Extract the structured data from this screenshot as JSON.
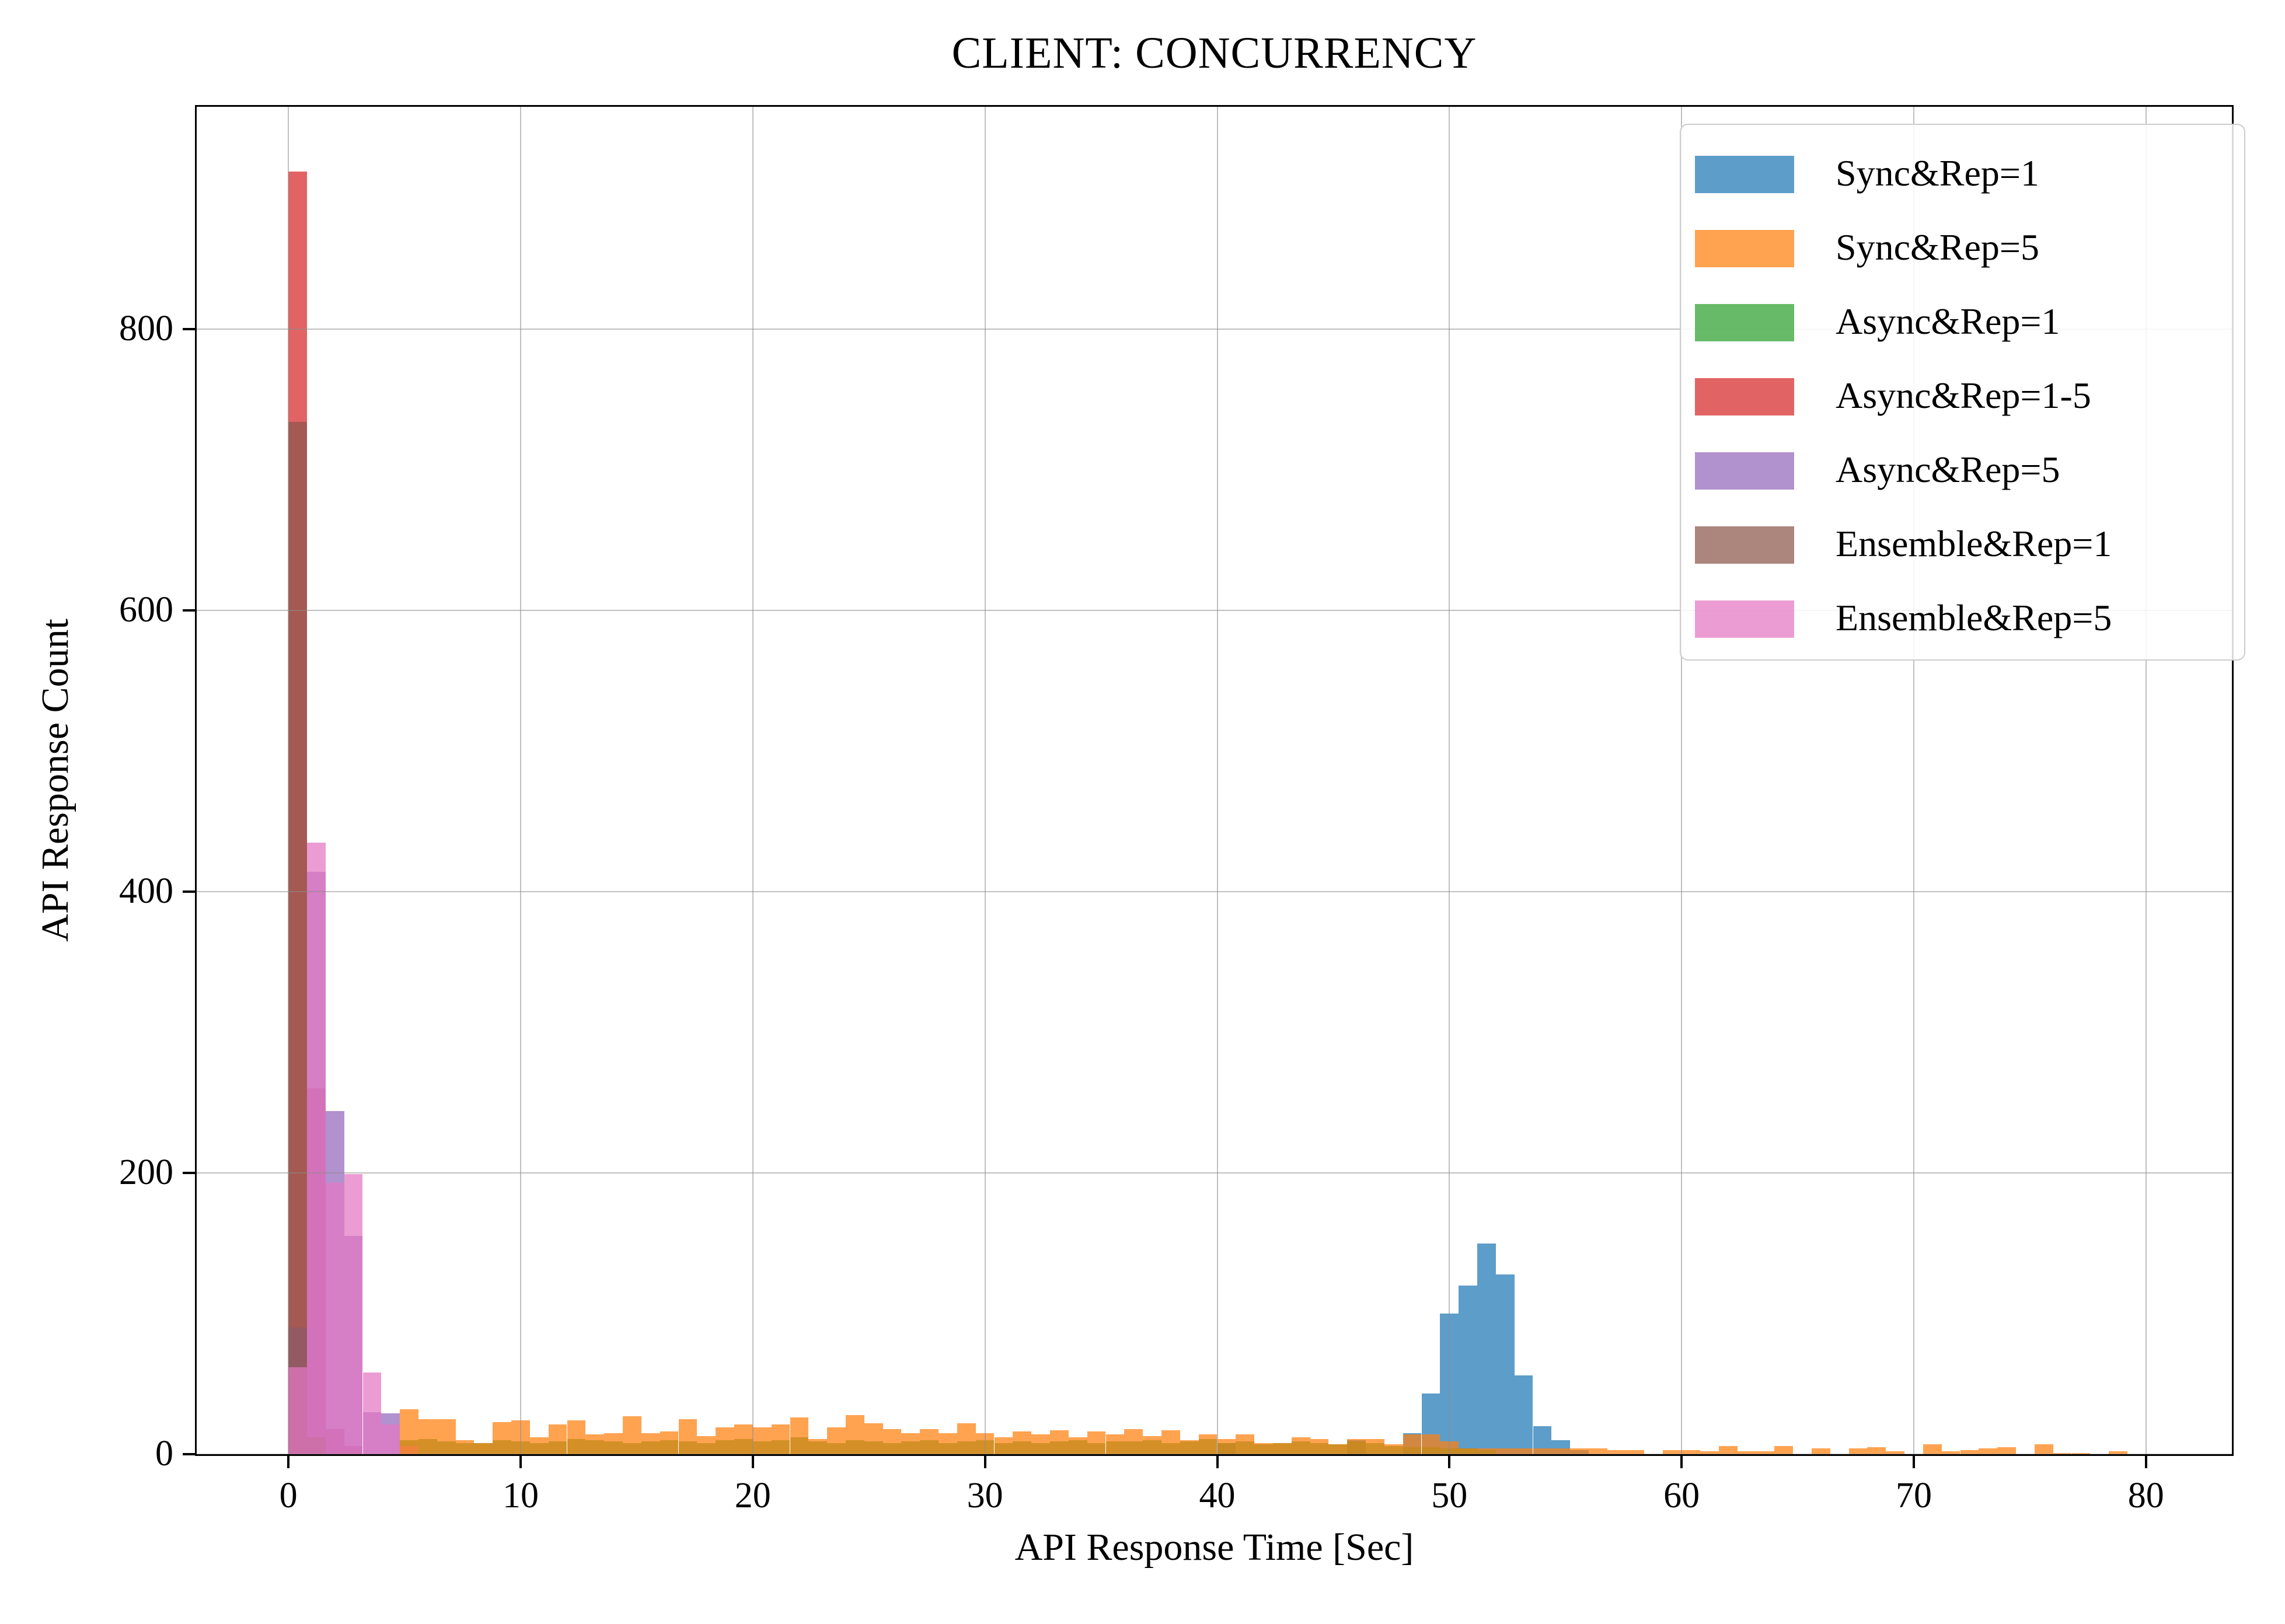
{
  "figure": {
    "background": "#ffffff"
  },
  "chart_data": {
    "type": "bar",
    "subtype": "overlapping-histogram",
    "title": "CLIENT: CONCURRENCY",
    "xlabel": "API Response Time [Sec]",
    "ylabel": "API Response Count",
    "xlim": [
      -3.95,
      83.7
    ],
    "ylim": [
      0,
      958
    ],
    "xticks": [
      0,
      10,
      20,
      30,
      40,
      50,
      60,
      70,
      80
    ],
    "yticks": [
      0,
      200,
      400,
      600,
      800
    ],
    "grid": true,
    "grid_above_bars": true,
    "legend_position": "upper right",
    "bar_alpha": 0.72,
    "bin_width": 0.8,
    "draw_order": [
      "Sync&Rep=1",
      "Async&Rep=1",
      "Async&Rep=1-5",
      "Async&Rep=5",
      "Ensemble&Rep=1",
      "Ensemble&Rep=5",
      "Sync&Rep=5"
    ],
    "series": [
      {
        "name": "Sync&Rep=1",
        "color": "#1f77b4",
        "bin_start": 40.0,
        "counts": [
          8,
          0,
          0,
          0,
          0,
          0,
          0,
          10,
          0,
          0,
          15,
          43,
          100,
          120,
          150,
          128,
          56,
          20,
          10,
          3
        ]
      },
      {
        "name": "Sync&Rep=5",
        "color": "#ff7f0e",
        "bin_start": 4.8,
        "counts": [
          32,
          25,
          25,
          10,
          8,
          23,
          24,
          12,
          21,
          24,
          14,
          15,
          27,
          15,
          16,
          25,
          13,
          19,
          21,
          19,
          21,
          26,
          11,
          19,
          28,
          22,
          18,
          15,
          18,
          15,
          22,
          15,
          12,
          16,
          14,
          17,
          12,
          16,
          14,
          18,
          13,
          17,
          10,
          14,
          11,
          14,
          8,
          8,
          12,
          11,
          7,
          11,
          11,
          7,
          14,
          14,
          9,
          4,
          4,
          4,
          4,
          4,
          4,
          4,
          4,
          3,
          3,
          0,
          3,
          3,
          2,
          6,
          2,
          2,
          6,
          0,
          4,
          0,
          4,
          5,
          2,
          0,
          7,
          2,
          3,
          4,
          5,
          0,
          7,
          1,
          1,
          0,
          2
        ]
      },
      {
        "name": "Async&Rep=1",
        "color": "#2ca02c",
        "bin_start": 4.8,
        "counts": [
          10,
          11,
          9,
          8,
          8,
          10,
          9,
          8,
          9,
          11,
          10,
          9,
          8,
          9,
          10,
          9,
          8,
          10,
          11,
          9,
          10,
          12,
          9,
          8,
          10,
          9,
          8,
          9,
          10,
          8,
          9,
          10,
          8,
          9,
          8,
          9,
          10,
          8,
          9,
          9,
          10,
          8,
          9,
          11,
          8,
          9,
          7,
          8,
          9,
          8,
          7,
          9,
          8,
          6,
          5,
          5,
          4,
          4,
          3
        ]
      },
      {
        "name": "Async&Rep=1-5",
        "color": "#d62728",
        "bin_start": 0.0,
        "counts": [
          912,
          260,
          18,
          6,
          0,
          0
        ]
      },
      {
        "name": "Async&Rep=5",
        "color": "#9467bd",
        "bin_start": 0.0,
        "counts": [
          90,
          414,
          244,
          155,
          30,
          29
        ]
      },
      {
        "name": "Ensemble&Rep=1",
        "color": "#8c564b",
        "bin_start": 0.0,
        "counts": [
          734,
          12,
          0,
          0,
          0,
          0
        ]
      },
      {
        "name": "Ensemble&Rep=5",
        "color": "#e377c2",
        "bin_start": 0.0,
        "counts": [
          62,
          435,
          193,
          199,
          58,
          21,
          6
        ]
      }
    ],
    "legend": [
      {
        "label": "Sync&Rep=1",
        "color": "#1f77b4"
      },
      {
        "label": "Sync&Rep=5",
        "color": "#ff7f0e"
      },
      {
        "label": "Async&Rep=1",
        "color": "#2ca02c"
      },
      {
        "label": "Async&Rep=1-5",
        "color": "#d62728"
      },
      {
        "label": "Async&Rep=5",
        "color": "#9467bd"
      },
      {
        "label": "Ensemble&Rep=1",
        "color": "#8c564b"
      },
      {
        "label": "Ensemble&Rep=5",
        "color": "#e377c2"
      }
    ]
  }
}
